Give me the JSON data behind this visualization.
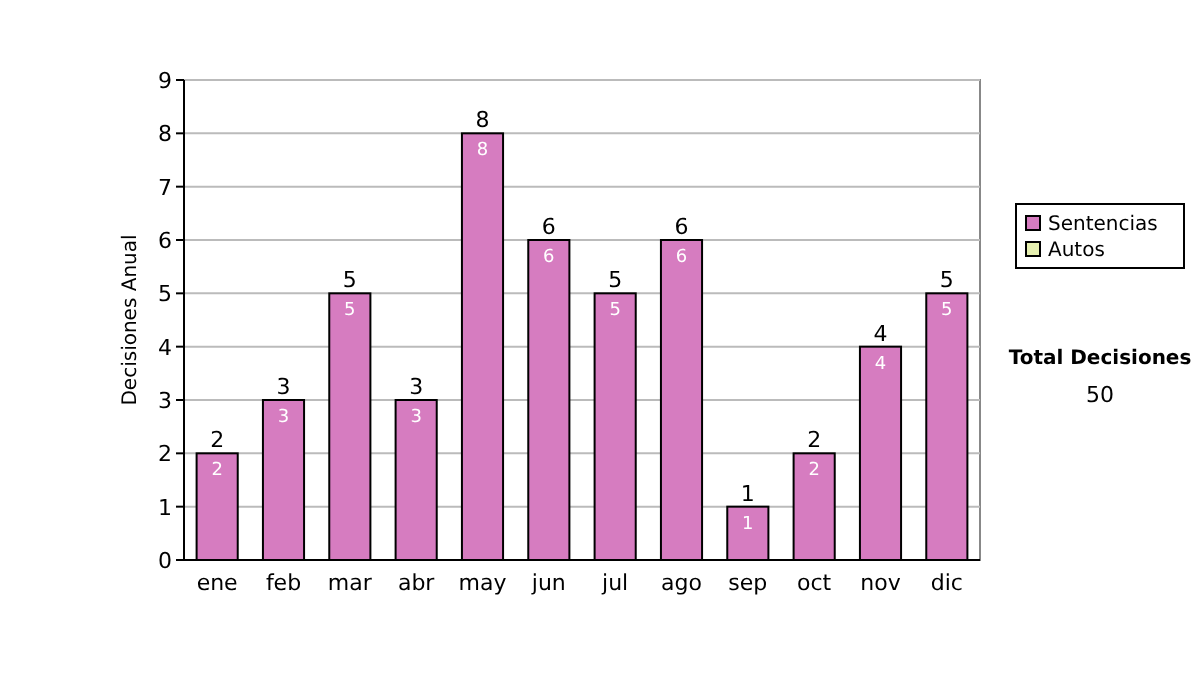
{
  "chart_data": {
    "type": "bar",
    "ylabel": "Decisiones Anual",
    "categories": [
      "ene",
      "feb",
      "mar",
      "abr",
      "may",
      "jun",
      "jul",
      "ago",
      "sep",
      "oct",
      "nov",
      "dic"
    ],
    "series": [
      {
        "name": "Sentencias",
        "color": "#d67cc0",
        "values": [
          2,
          3,
          5,
          3,
          8,
          6,
          5,
          6,
          1,
          2,
          4,
          5
        ],
        "value_labels": [
          "2",
          "3",
          "5",
          "3",
          "8",
          "6",
          "5",
          "6",
          "1",
          "2",
          "4",
          "5"
        ]
      },
      {
        "name": "Autos",
        "color": "#e6f0b0",
        "values": [
          0,
          0,
          0,
          0,
          0,
          0,
          0,
          0,
          0,
          0,
          0,
          0
        ]
      }
    ],
    "stacked": true,
    "totals": [
      "2",
      "3",
      "5",
      "3",
      "8",
      "6",
      "5",
      "6",
      "1",
      "2",
      "4",
      "5"
    ],
    "ylim": [
      0,
      9
    ],
    "yticks": [
      0,
      1,
      2,
      3,
      4,
      5,
      6,
      7,
      8,
      9
    ],
    "grid": "y",
    "legend": "right",
    "annotations": [
      "Total Decisiones",
      "50"
    ]
  }
}
